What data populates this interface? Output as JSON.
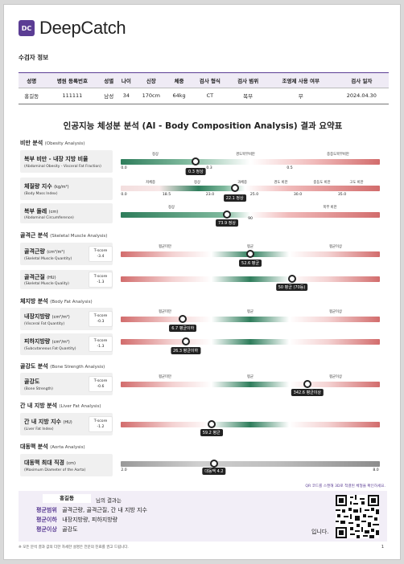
{
  "brand": {
    "logo_mark": "DC",
    "name": "DeepCatch"
  },
  "patient_section": {
    "label": "수검자 정보"
  },
  "patient_table": {
    "headers": [
      "성명",
      "병원 등록번호",
      "성별",
      "나이",
      "신장",
      "체중",
      "검사 형식",
      "검사 범위",
      "조영제 사용 여부",
      "검사 일자"
    ],
    "values": [
      "홍길동",
      "111111",
      "남성",
      "34",
      "170cm",
      "64kg",
      "CT",
      "복부",
      "무",
      "2024.04.30"
    ]
  },
  "report_title": "인공지능 체성분 분석 (AI - Body Composition Analysis) 결과 요약표",
  "categories": {
    "obesity": {
      "ko": "비만 분석",
      "en": "(Obesity Analysis)"
    },
    "muscle": {
      "ko": "골격근 분석",
      "en": "(Skeletal Muscle Analysis)"
    },
    "fat": {
      "ko": "체지방 분석",
      "en": "(Body Fat Analysis)"
    },
    "bone": {
      "ko": "골강도 분석",
      "en": "(Bone Strength Analysis)"
    },
    "liver": {
      "ko": "간 내 지방 분석",
      "en": "(Liver Fat Analysis)"
    },
    "aorta": {
      "ko": "대동맥 분석",
      "en": "(Aorta Analysis)"
    }
  },
  "metrics": {
    "ab_obesity": {
      "ko": "복부 비만 - 내장 지방 비율",
      "en": "(Abdominal Obesity - Visceral Fat Fraction)",
      "zones": [
        "정상",
        "경도복부비만",
        "중증도복부비만"
      ],
      "ticks": [
        "0.0",
        "0.3",
        "0.5"
      ],
      "value_label": "0.3 정상",
      "level": 0.29
    },
    "bmi": {
      "ko": "체질량 지수",
      "unit": "(kg/m²)",
      "en": "(Body Mass Index)",
      "zones": [
        "저체중",
        "정상",
        "과체중",
        "경도 비만",
        "중등도 비만",
        "고도 비만"
      ],
      "ticks": [
        "0.0",
        "18.5",
        "23.0",
        "25.0",
        "30.0",
        "35.0"
      ],
      "value_label": "22.1 정상",
      "level": 0.44
    },
    "waist": {
      "ko": "복부 둘레",
      "unit": "(cm)",
      "en": "(Abdominal Circumference)",
      "zones": [
        "정상",
        "복부 비만"
      ],
      "ticks": [
        "90"
      ],
      "value_label": "73.9 정상",
      "level": 0.41
    },
    "smq": {
      "ko": "골격근량",
      "unit": "(cm²/m²)",
      "en": "(Skeletal Muscle Quantity)",
      "tscore_label": "T-score",
      "tscore": "-3.4",
      "zones": [
        "평균미만",
        "평균",
        "평균이상"
      ],
      "value_label": "52.6 평균",
      "level": 0.5
    },
    "smqual": {
      "ko": "골격근질",
      "unit": "(HU)",
      "en": "(Skeletal Muscle Quality)",
      "tscore_label": "T-score",
      "tscore": "-1.3",
      "value_label": "50 평균 (70등)",
      "level": 0.66
    },
    "vfq": {
      "ko": "내장지방량",
      "unit": "(cm²/m²)",
      "en": "(Visceral Fat Quantity)",
      "tscore_label": "T-score",
      "tscore": "-0.3",
      "zones": [
        "평균미만",
        "평균",
        "평균이상"
      ],
      "value_label": "6.7 평균이하",
      "level": 0.24
    },
    "sfq": {
      "ko": "피하지방량",
      "unit": "(cm²/m²)",
      "en": "(Subcutaneous Fat Quantity)",
      "tscore_label": "T-score",
      "tscore": "-1.3",
      "value_label": "26.3 평균이하",
      "level": 0.25
    },
    "bone": {
      "ko": "골강도",
      "en": "(Bone Strength)",
      "tscore_label": "T-score",
      "tscore": "-0.6",
      "zones": [
        "평균미만",
        "평균",
        "평균이상"
      ],
      "value_label": "342.6 평균이상",
      "level": 0.72
    },
    "liver": {
      "ko": "간 내 지방 지수",
      "unit": "(HU)",
      "en": "(Liver Fat Index)",
      "tscore_label": "T-score",
      "tscore": "-1.2",
      "value_label": "59.2 평균",
      "level": 0.35
    },
    "aorta": {
      "ko": "대동맥 최대 직경",
      "unit": "(cm)",
      "en": "(Maximum Diameter of the Aorta)",
      "ticks": [
        "2.0",
        "8.0"
      ],
      "value_label": "대동맥 4.2",
      "level": 0.36
    }
  },
  "qr_note": "QR 코드를 스캔해 3D로 척결된 체형을 확인하세요.",
  "summary": {
    "name": "홍길동",
    "suffix": "님의 결과는",
    "rows": [
      {
        "key": "평균범위",
        "items": "골격근량, 골격근질, 간 내 지방 지수"
      },
      {
        "key": "평균이하",
        "items": "내장지방량, 피하지방량"
      },
      {
        "key": "평균이상",
        "items": "골강도"
      }
    ],
    "closing": "입니다."
  },
  "footnote": "※ 모든 분석 결과 값의 더한 자세한 설명은 전문의 진료를 권고 드립니다.",
  "page_number": "1"
}
